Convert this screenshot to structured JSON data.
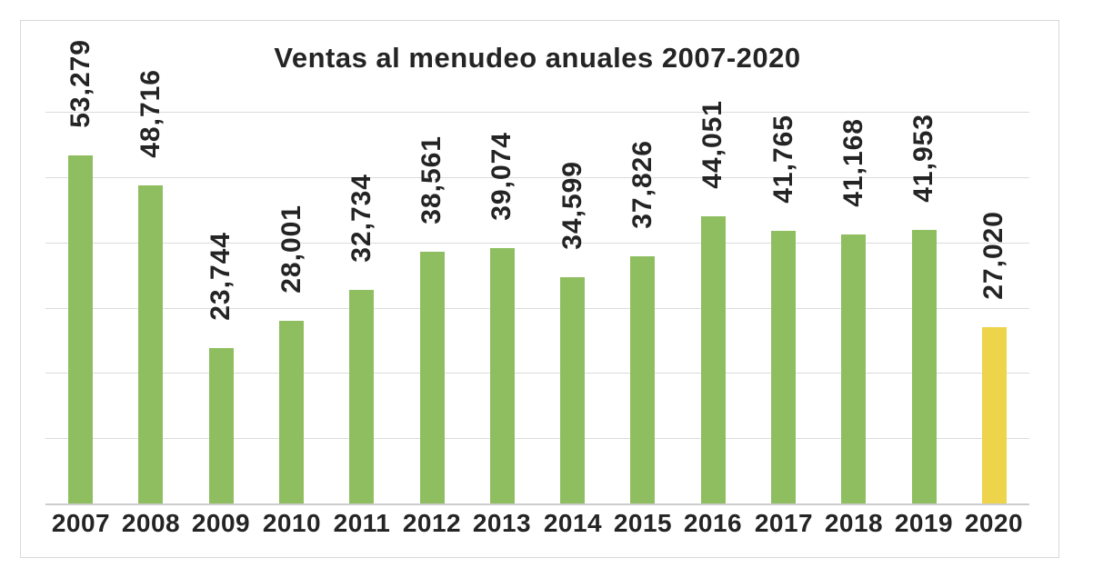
{
  "chart_data": {
    "type": "bar",
    "title": "Ventas al menudeo anuales 2007-2020",
    "categories": [
      "2007",
      "2008",
      "2009",
      "2010",
      "2011",
      "2012",
      "2013",
      "2014",
      "2015",
      "2016",
      "2017",
      "2018",
      "2019",
      "2020"
    ],
    "values": [
      53279,
      48716,
      23744,
      28001,
      32734,
      38561,
      39074,
      34599,
      37826,
      44051,
      41765,
      41168,
      41953,
      27020
    ],
    "value_labels": [
      "53,279",
      "48,716",
      "23,744",
      "28,001",
      "32,734",
      "38,561",
      "39,074",
      "34,599",
      "37,826",
      "44,051",
      "41,765",
      "41,168",
      "41,953",
      "27,020"
    ],
    "value_label_rotation_deg": 90,
    "xlabel": "",
    "ylabel": "",
    "ylim": [
      0,
      60000
    ],
    "gridline_interval": 10000,
    "grid": true,
    "y_axis_labels_visible": false,
    "legend": "none",
    "colors": {
      "bar_default": "#8fbe61",
      "bar_highlight": "#edd44a",
      "highlight_category": "2020",
      "gridline": "#dbdbdb",
      "axis_line": "#cccccc",
      "frame_border": "#d9d9d9",
      "text": "#242424",
      "background": "#ffffff"
    }
  }
}
